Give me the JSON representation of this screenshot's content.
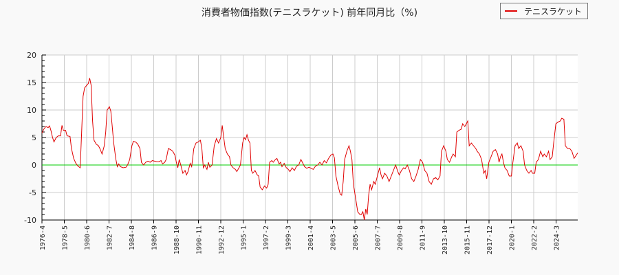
{
  "chart_data": {
    "type": "line",
    "title": "消費者物価指数(テニスラケット) 前年同月比（%)",
    "xlabel": "",
    "ylabel": "",
    "ylim": [
      -10,
      20
    ],
    "yticks": [
      20,
      15,
      10,
      5,
      0,
      -5,
      -10
    ],
    "grid": true,
    "legend_position": "top-right",
    "x_tick_labels": [
      "1976-4",
      "1978-5",
      "1980-6",
      "1982-7",
      "1984-8",
      "1986-9",
      "1988-10",
      "1990-11",
      "1992-12",
      "1995-1",
      "1997-2",
      "1999-3",
      "2001-4",
      "2003-5",
      "2005-6",
      "2007-7",
      "2009-8",
      "2011-9",
      "2013-10",
      "2015-11",
      "2017-12",
      "2020-1",
      "2022-2",
      "2024-3"
    ],
    "reference_line": {
      "y": 0,
      "color": "#00cc00"
    },
    "series": [
      {
        "name": "テニスラケット",
        "color": "#e00000",
        "points": [
          [
            1976.25,
            5.8
          ],
          [
            1976.5,
            6.5
          ],
          [
            1976.8,
            7.0
          ],
          [
            1977.1,
            6.8
          ],
          [
            1977.3,
            7.1
          ],
          [
            1977.5,
            6.2
          ],
          [
            1977.7,
            5.0
          ],
          [
            1977.9,
            4.2
          ],
          [
            1978.2,
            5.0
          ],
          [
            1978.5,
            5.3
          ],
          [
            1978.8,
            5.3
          ],
          [
            1979.0,
            7.2
          ],
          [
            1979.2,
            6.3
          ],
          [
            1979.5,
            6.3
          ],
          [
            1979.7,
            5.3
          ],
          [
            1980.1,
            5.2
          ],
          [
            1980.3,
            3.0
          ],
          [
            1980.6,
            1.2
          ],
          [
            1980.9,
            0.3
          ],
          [
            1981.2,
            -0.2
          ],
          [
            1981.5,
            -0.5
          ],
          [
            1981.7,
            6.0
          ],
          [
            1981.9,
            12.5
          ],
          [
            1982.1,
            14.0
          ],
          [
            1982.4,
            14.5
          ],
          [
            1982.6,
            14.8
          ],
          [
            1982.8,
            15.8
          ],
          [
            1983.0,
            14.5
          ],
          [
            1983.2,
            8.0
          ],
          [
            1983.4,
            4.5
          ],
          [
            1983.7,
            3.8
          ],
          [
            1984.0,
            3.5
          ],
          [
            1984.2,
            3.0
          ],
          [
            1984.5,
            2.0
          ],
          [
            1984.8,
            3.5
          ],
          [
            1985.0,
            6.0
          ],
          [
            1985.2,
            10.0
          ],
          [
            1985.5,
            10.6
          ],
          [
            1985.7,
            9.8
          ],
          [
            1985.9,
            7.0
          ],
          [
            1986.1,
            4.0
          ],
          [
            1986.4,
            1.0
          ],
          [
            1986.6,
            -0.3
          ],
          [
            1986.8,
            0.2
          ],
          [
            1987.0,
            -0.3
          ],
          [
            1987.4,
            -0.5
          ],
          [
            1987.8,
            -0.4
          ],
          [
            1988.0,
            0.0
          ],
          [
            1988.3,
            1.0
          ],
          [
            1988.6,
            3.5
          ],
          [
            1988.8,
            4.3
          ],
          [
            1989.1,
            4.2
          ],
          [
            1989.4,
            3.8
          ],
          [
            1989.7,
            3.0
          ],
          [
            1989.9,
            0.5
          ],
          [
            1990.2,
            0.0
          ],
          [
            1990.5,
            0.5
          ],
          [
            1990.8,
            0.7
          ],
          [
            1991.1,
            0.5
          ],
          [
            1991.4,
            0.8
          ],
          [
            1991.7,
            0.7
          ],
          [
            1992.0,
            0.6
          ],
          [
            1992.3,
            0.6
          ],
          [
            1992.6,
            0.8
          ],
          [
            1992.8,
            0.2
          ],
          [
            1993.1,
            0.5
          ],
          [
            1993.3,
            1.0
          ],
          [
            1993.6,
            3.0
          ],
          [
            1993.9,
            2.8
          ],
          [
            1994.2,
            2.5
          ],
          [
            1994.5,
            1.8
          ],
          [
            1994.7,
            0.5
          ],
          [
            1994.9,
            -0.5
          ],
          [
            1995.1,
            1.0
          ],
          [
            1995.3,
            0.0
          ],
          [
            1995.6,
            -1.5
          ],
          [
            1995.9,
            -1.0
          ],
          [
            1996.1,
            -1.8
          ],
          [
            1996.3,
            -1.2
          ],
          [
            1996.6,
            0.3
          ],
          [
            1996.8,
            -0.3
          ],
          [
            1997.1,
            3.0
          ],
          [
            1997.4,
            4.0
          ],
          [
            1997.7,
            4.2
          ],
          [
            1998.0,
            4.5
          ],
          [
            1998.2,
            3.0
          ],
          [
            1998.4,
            -0.5
          ],
          [
            1998.6,
            0.0
          ],
          [
            1998.9,
            -0.8
          ],
          [
            1999.1,
            0.5
          ],
          [
            1999.3,
            -0.4
          ],
          [
            1999.6,
            0.0
          ],
          [
            1999.9,
            3.5
          ],
          [
            2000.2,
            4.8
          ],
          [
            2000.5,
            4.0
          ],
          [
            2000.8,
            5.0
          ],
          [
            2001.0,
            7.2
          ],
          [
            2001.2,
            5.0
          ],
          [
            2001.4,
            3.0
          ],
          [
            2001.7,
            2.0
          ],
          [
            2002.0,
            1.5
          ],
          [
            2002.2,
            0.0
          ],
          [
            2002.5,
            -0.5
          ],
          [
            2002.8,
            -0.8
          ],
          [
            2003.0,
            -1.2
          ],
          [
            2003.3,
            -0.5
          ],
          [
            2003.5,
            0.0
          ],
          [
            2003.8,
            4.0
          ],
          [
            2004.0,
            5.0
          ],
          [
            2004.2,
            4.6
          ],
          [
            2004.4,
            5.5
          ],
          [
            2004.6,
            4.5
          ],
          [
            2004.8,
            4.0
          ],
          [
            2005.0,
            -1.0
          ],
          [
            2005.2,
            -1.5
          ],
          [
            2005.5,
            -1.0
          ],
          [
            2005.8,
            -1.8
          ],
          [
            2006.0,
            -2.0
          ],
          [
            2006.2,
            -4.0
          ],
          [
            2006.5,
            -4.5
          ],
          [
            2006.8,
            -3.8
          ],
          [
            2007.1,
            -4.2
          ],
          [
            2007.3,
            -3.5
          ],
          [
            2007.5,
            0.5
          ],
          [
            2007.8,
            0.8
          ],
          [
            2008.0,
            0.5
          ],
          [
            2008.3,
            1.0
          ],
          [
            2008.5,
            1.2
          ],
          [
            2008.8,
            0.2
          ],
          [
            2009.0,
            0.5
          ],
          [
            2009.2,
            -0.3
          ],
          [
            2009.5,
            0.3
          ],
          [
            2009.8,
            -0.5
          ],
          [
            2010.0,
            -0.7
          ],
          [
            2010.3,
            -1.2
          ],
          [
            2010.6,
            -0.5
          ],
          [
            2010.9,
            -1.0
          ],
          [
            2011.2,
            -0.2
          ],
          [
            2011.5,
            0.0
          ],
          [
            2011.8,
            1.0
          ],
          [
            2012.0,
            0.5
          ],
          [
            2012.3,
            -0.3
          ],
          [
            2012.6,
            -0.6
          ],
          [
            2012.9,
            -0.4
          ],
          [
            2013.2,
            -0.6
          ],
          [
            2013.5,
            -0.8
          ],
          [
            2013.8,
            -0.2
          ],
          [
            2014.1,
            0.0
          ],
          [
            2014.4,
            0.5
          ],
          [
            2014.7,
            0.0
          ],
          [
            2015.0,
            0.8
          ],
          [
            2015.3,
            0.4
          ],
          [
            2015.6,
            1.2
          ],
          [
            2015.9,
            1.8
          ],
          [
            2016.2,
            2.0
          ],
          [
            2016.4,
            1.3
          ],
          [
            2016.6,
            -2.0
          ],
          [
            2016.9,
            -3.8
          ],
          [
            2017.2,
            -5.3
          ],
          [
            2017.4,
            -5.5
          ],
          [
            2017.6,
            -3.0
          ],
          [
            2017.8,
            1.0
          ],
          [
            2018.1,
            2.5
          ],
          [
            2018.4,
            3.5
          ],
          [
            2018.6,
            2.5
          ],
          [
            2018.8,
            1.0
          ],
          [
            2019.0,
            -3.5
          ],
          [
            2019.3,
            -6.0
          ],
          [
            2019.6,
            -8.5
          ],
          [
            2019.9,
            -9.0
          ],
          [
            2020.1,
            -9.0
          ],
          [
            2020.3,
            -8.5
          ],
          [
            2020.5,
            -10.0
          ],
          [
            2020.7,
            -8.0
          ],
          [
            2020.9,
            -9.0
          ],
          [
            2021.1,
            -5.5
          ],
          [
            2021.3,
            -3.5
          ],
          [
            2021.5,
            -4.5
          ],
          [
            2021.8,
            -3.0
          ],
          [
            2022.0,
            -3.5
          ],
          [
            2022.3,
            -2.0
          ],
          [
            2022.6,
            -0.5
          ],
          [
            2022.8,
            -1.8
          ],
          [
            2023.0,
            -2.5
          ],
          [
            2023.3,
            -1.5
          ],
          [
            2023.6,
            -2.0
          ],
          [
            2023.9,
            -3.0
          ],
          [
            2024.2,
            -2.0
          ],
          [
            2024.5,
            -1.0
          ],
          [
            2024.8,
            0.0
          ],
          [
            2025.1,
            -1.2
          ],
          [
            2025.3,
            -1.8
          ],
          [
            2025.6,
            -1.0
          ],
          [
            2025.9,
            -0.5
          ],
          [
            2026.1,
            -0.7
          ],
          [
            2026.4,
            0.0
          ],
          [
            2026.7,
            -1.0
          ],
          [
            2027.0,
            -2.5
          ],
          [
            2027.3,
            -3.0
          ],
          [
            2027.6,
            -2.0
          ],
          [
            2027.9,
            -0.8
          ],
          [
            2028.2,
            1.0
          ],
          [
            2028.5,
            0.5
          ],
          [
            2028.8,
            -1.0
          ],
          [
            2029.1,
            -1.5
          ],
          [
            2029.4,
            -3.0
          ],
          [
            2029.7,
            -3.5
          ],
          [
            2030.0,
            -2.5
          ],
          [
            2030.3,
            -2.3
          ],
          [
            2030.6,
            -2.7
          ],
          [
            2030.9,
            -2.0
          ],
          [
            2031.1,
            2.5
          ],
          [
            2031.4,
            3.5
          ],
          [
            2031.7,
            2.5
          ],
          [
            2031.9,
            1.0
          ],
          [
            2032.2,
            0.5
          ],
          [
            2032.5,
            1.5
          ],
          [
            2032.7,
            2.0
          ],
          [
            2033.0,
            1.5
          ],
          [
            2033.2,
            6.0
          ],
          [
            2033.5,
            6.3
          ],
          [
            2033.8,
            6.5
          ],
          [
            2034.0,
            7.5
          ],
          [
            2034.3,
            7.0
          ],
          [
            2034.5,
            7.5
          ],
          [
            2034.7,
            8.0
          ],
          [
            2034.9,
            3.5
          ],
          [
            2035.2,
            4.0
          ],
          [
            2035.5,
            3.5
          ],
          [
            2035.8,
            3.0
          ],
          [
            2036.0,
            2.5
          ],
          [
            2036.3,
            2.0
          ],
          [
            2036.6,
            1.0
          ],
          [
            2036.9,
            -1.5
          ],
          [
            2037.1,
            -1.0
          ],
          [
            2037.3,
            -2.5
          ],
          [
            2037.6,
            0.5
          ],
          [
            2037.9,
            1.5
          ],
          [
            2038.2,
            2.5
          ],
          [
            2038.5,
            2.8
          ],
          [
            2038.8,
            2.0
          ],
          [
            2039.0,
            0.5
          ],
          [
            2039.2,
            1.5
          ],
          [
            2039.4,
            2.0
          ],
          [
            2039.6,
            0.5
          ],
          [
            2039.8,
            -0.5
          ],
          [
            2040.1,
            -1.0
          ],
          [
            2040.4,
            -2.0
          ],
          [
            2040.7,
            -2.0
          ],
          [
            2040.9,
            0.5
          ],
          [
            2041.2,
            3.5
          ],
          [
            2041.5,
            4.0
          ],
          [
            2041.7,
            3.0
          ],
          [
            2042.0,
            3.5
          ],
          [
            2042.3,
            2.5
          ],
          [
            2042.5,
            0.0
          ],
          [
            2042.8,
            -1.0
          ],
          [
            2043.1,
            -1.5
          ],
          [
            2043.4,
            -1.0
          ],
          [
            2043.6,
            -1.5
          ],
          [
            2043.9,
            -1.5
          ],
          [
            2044.1,
            0.5
          ],
          [
            2044.4,
            1.0
          ],
          [
            2044.7,
            2.5
          ],
          [
            2045.0,
            1.5
          ],
          [
            2045.2,
            2.0
          ],
          [
            2045.5,
            1.5
          ],
          [
            2045.8,
            2.5
          ],
          [
            2046.0,
            1.0
          ],
          [
            2046.3,
            1.5
          ],
          [
            2046.5,
            4.0
          ],
          [
            2046.8,
            7.5
          ],
          [
            2047.1,
            7.8
          ],
          [
            2047.4,
            8.0
          ],
          [
            2047.6,
            8.5
          ],
          [
            2047.9,
            8.3
          ],
          [
            2048.1,
            3.5
          ],
          [
            2048.4,
            3.0
          ],
          [
            2048.7,
            3.0
          ],
          [
            2049.0,
            2.5
          ],
          [
            2049.3,
            1.2
          ],
          [
            2049.6,
            1.8
          ],
          [
            2049.8,
            2.2
          ]
        ]
      }
    ]
  },
  "title": "消費者物価指数(テニスラケット) 前年同月比（%)",
  "legend": {
    "label": "テニスラケット",
    "color": "#e00000"
  }
}
